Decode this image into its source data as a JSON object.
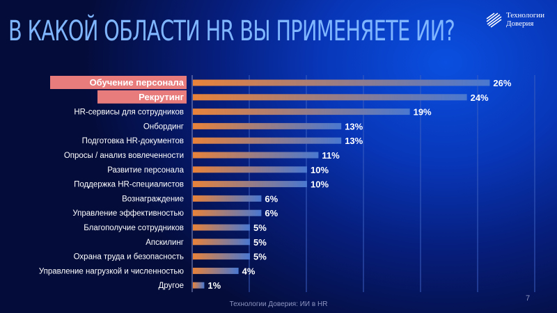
{
  "title": "В КАКОЙ ОБЛАСТИ HR ВЫ ПРИМЕНЯЕТЕ ИИ?",
  "logo": {
    "line1": "Технологии",
    "line2": "Доверия"
  },
  "footer": "Технологии Доверия: ИИ в HR",
  "page_number": "7",
  "colors": {
    "bar_start": "#e8823a",
    "bar_end": "#4a78d0",
    "highlight": "#e87b7b"
  },
  "chart_data": {
    "type": "bar",
    "orientation": "horizontal",
    "grid": true,
    "xlim": [
      0,
      30
    ],
    "categories": [
      "Обучение персонала",
      "Рекрутинг",
      "HR-сервисы для сотрудников",
      "Онбординг",
      "Подготовка HR-документов",
      "Опросы / анализ вовлеченности",
      "Развитие персонала",
      "Поддержка HR-специалистов",
      "Вознаграждение",
      "Управление эффективностью",
      "Благополучие сотрудников",
      "Апскилинг",
      "Охрана труда и безопасность",
      "Управление нагрузкой и численностью",
      "Другое"
    ],
    "values": [
      26,
      24,
      19,
      13,
      13,
      11,
      10,
      10,
      6,
      6,
      5,
      5,
      5,
      4,
      1
    ],
    "value_labels": [
      "26%",
      "24%",
      "19%",
      "13%",
      "13%",
      "11%",
      "10%",
      "10%",
      "6%",
      "6%",
      "5%",
      "5%",
      "5%",
      "4%",
      "1%"
    ],
    "highlighted": [
      0,
      1
    ]
  }
}
